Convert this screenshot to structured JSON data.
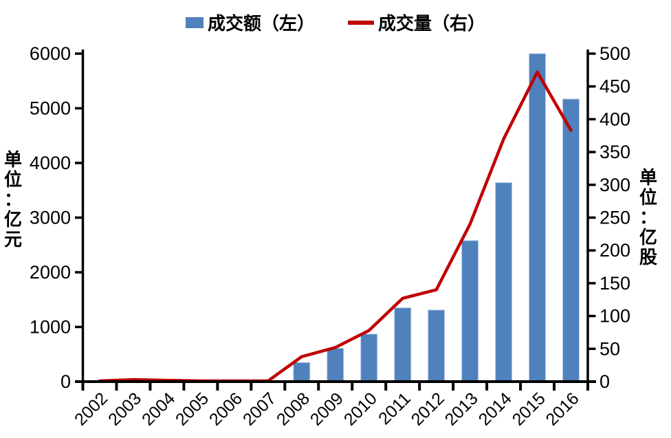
{
  "legend": {
    "bar_label": "成交额（左）",
    "line_label": "成交量（右）"
  },
  "chart_data": {
    "type": "bar",
    "subtype": "dual-axis bar + line",
    "categories": [
      "2002",
      "2003",
      "2004",
      "2005",
      "2006",
      "2007",
      "2008",
      "2009",
      "2010",
      "2011",
      "2012",
      "2013",
      "2014",
      "2015",
      "2016"
    ],
    "series": [
      {
        "name": "成交额（左）",
        "type": "bar",
        "axis": "left",
        "values": [
          0,
          0,
          0,
          0,
          0,
          0,
          350,
          610,
          870,
          1350,
          1310,
          2580,
          3640,
          6000,
          5170
        ]
      },
      {
        "name": "成交量（右）",
        "type": "line",
        "axis": "right",
        "values": [
          1,
          3,
          2,
          1,
          1,
          1,
          38,
          52,
          78,
          127,
          140,
          240,
          370,
          472,
          383
        ]
      }
    ],
    "left_axis": {
      "unit": "单位：亿元",
      "min": 0,
      "max": 6000,
      "step": 1000,
      "ticks": [
        "0",
        "1000",
        "2000",
        "3000",
        "4000",
        "5000",
        "6000"
      ]
    },
    "right_axis": {
      "unit": "单位：亿股",
      "min": 0,
      "max": 500,
      "step": 50,
      "ticks": [
        "0",
        "50",
        "100",
        "150",
        "200",
        "250",
        "300",
        "350",
        "400",
        "450",
        "500"
      ]
    },
    "legend_position": "top-center",
    "grid": false,
    "colors": {
      "bar": "#4F81BD",
      "bar_edge": "#B8CCE4",
      "line": "#C00000",
      "axis": "#000000",
      "text": "#000000"
    }
  }
}
